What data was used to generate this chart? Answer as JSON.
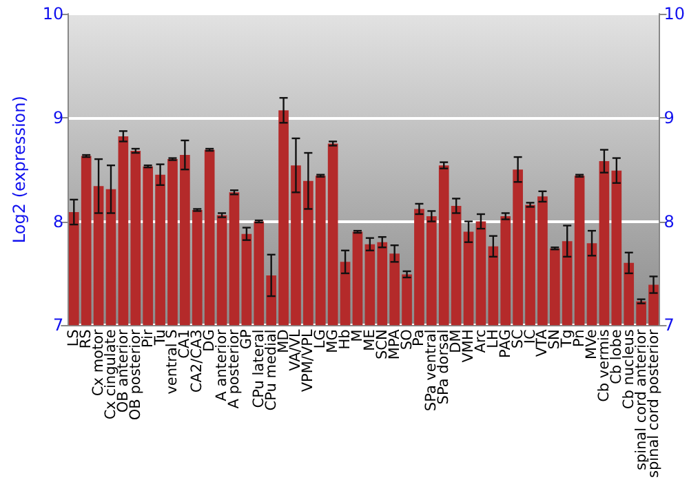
{
  "chart_data": {
    "type": "bar",
    "ylabel": "Log2 (expression)",
    "categories": [
      "LS",
      "RS",
      "Cx motor",
      "Cx cingulate",
      "OB anterior",
      "OB posterior",
      "Pir",
      "Tu",
      "ventral S",
      "CA1",
      "CA2/CA3",
      "DG",
      "A anterior",
      "A posterior",
      "GP",
      "CPu lateral",
      "CPu medial",
      "MD",
      "VA/VL",
      "VPM/VPL",
      "LG",
      "MG",
      "Hb",
      "M",
      "ME",
      "SCN",
      "MPA",
      "SO",
      "Pa",
      "SPa ventral",
      "SPa dorsal",
      "DM",
      "VMH",
      "Arc",
      "LH",
      "PAG",
      "SC",
      "IC",
      "VTA",
      "SN",
      "Tg",
      "Pn",
      "MVe",
      "Cb vermis",
      "Cb lobe",
      "Cb nucleus",
      "spinal cord anterior",
      "spinal cord posterior"
    ],
    "values": [
      8.09,
      8.63,
      8.34,
      8.31,
      8.82,
      8.68,
      8.53,
      8.45,
      8.6,
      8.64,
      8.11,
      8.69,
      8.06,
      8.28,
      7.88,
      8.0,
      7.48,
      9.07,
      8.54,
      8.39,
      8.44,
      8.75,
      7.61,
      7.9,
      7.78,
      7.8,
      7.69,
      7.49,
      8.12,
      8.05,
      8.54,
      8.15,
      7.9,
      8.0,
      7.76,
      8.05,
      8.5,
      8.16,
      8.24,
      7.74,
      7.81,
      8.44,
      7.79,
      8.58,
      8.49,
      7.6,
      7.23,
      7.39
    ],
    "errors": [
      0.12,
      0.01,
      0.26,
      0.23,
      0.05,
      0.02,
      0.01,
      0.1,
      0.01,
      0.14,
      0.01,
      0.01,
      0.02,
      0.02,
      0.06,
      0.01,
      0.2,
      0.12,
      0.26,
      0.27,
      0.01,
      0.02,
      0.11,
      0.01,
      0.06,
      0.05,
      0.08,
      0.03,
      0.05,
      0.05,
      0.03,
      0.07,
      0.1,
      0.07,
      0.1,
      0.03,
      0.12,
      0.02,
      0.05,
      0.01,
      0.15,
      0.01,
      0.12,
      0.11,
      0.12,
      0.1,
      0.02,
      0.08
    ],
    "color": "#b42a2a",
    "ylim": [
      7,
      10
    ],
    "yticks": [
      7,
      8,
      9,
      10
    ],
    "y2lim": [
      7,
      10
    ],
    "y2ticks": [
      7,
      8,
      9,
      10
    ],
    "grid": "y"
  }
}
